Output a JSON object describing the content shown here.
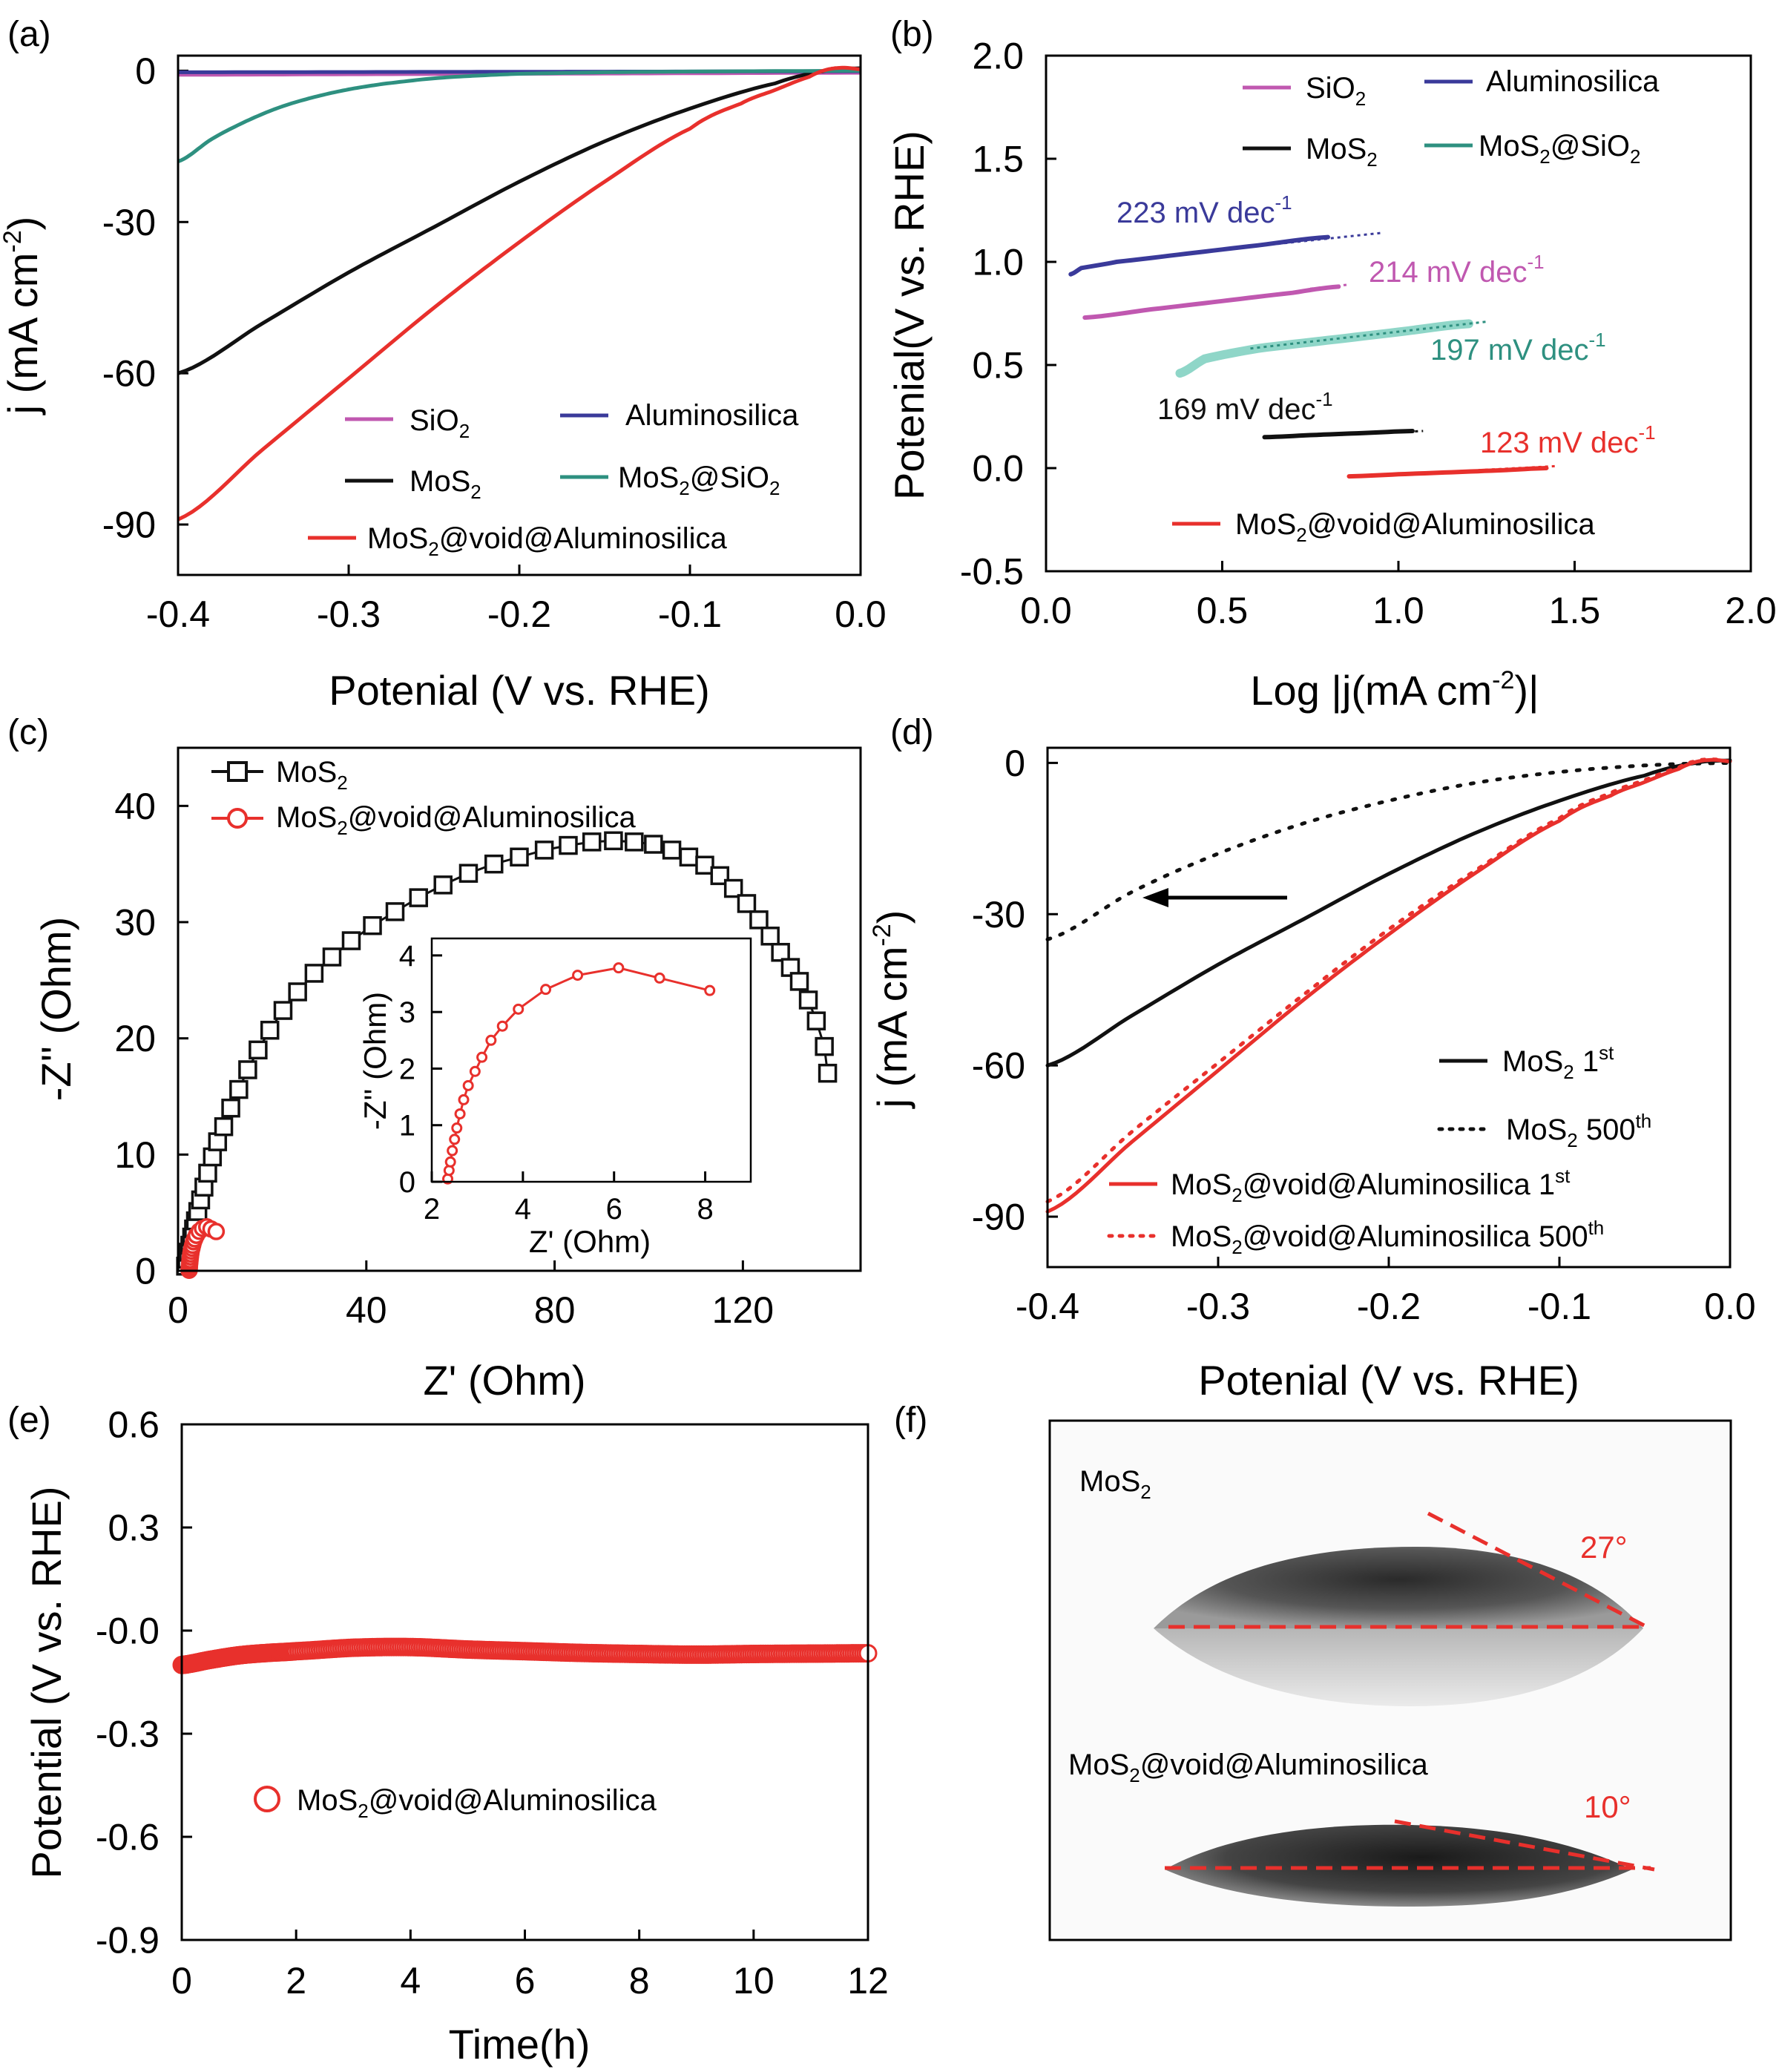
{
  "figure": {
    "panel_labels": [
      "(a)",
      "(b)",
      "(c)",
      "(d)",
      "(e)",
      "(f)"
    ]
  },
  "colors": {
    "sio2": "#c058b0",
    "aluminosilica": "#3a3a9a",
    "mos2": "#111111",
    "mos2_sio2": "#2e9080",
    "mos2_sio2_light": "#8fd6c8",
    "void": "#e8302c"
  },
  "chart_data": [
    {
      "panel": "(a)",
      "type": "line",
      "xlabel": "Potenial (V vs. RHE)",
      "ylabel": "j (mA cm-2)",
      "xlim": [
        -0.4,
        0.0
      ],
      "ylim": [
        -100,
        3
      ],
      "xticks": [
        "-0.4",
        "-0.3",
        "-0.2",
        "-0.1",
        "0.0"
      ],
      "yticks": [
        "0",
        "-30",
        "-60",
        "-90"
      ],
      "legend": [
        "SiO2",
        "Aluminosilica",
        "MoS2",
        "MoS2@SiO2",
        "MoS2@void@Aluminosilica"
      ],
      "series": [
        {
          "name": "SiO2",
          "x": [
            -0.4,
            -0.3,
            -0.2,
            -0.1,
            0.0
          ],
          "y": [
            -0.8,
            -0.7,
            -0.6,
            -0.5,
            -0.4
          ]
        },
        {
          "name": "Aluminosilica",
          "x": [
            -0.4,
            -0.3,
            -0.2,
            -0.1,
            0.0
          ],
          "y": [
            -0.3,
            -0.25,
            -0.2,
            -0.15,
            -0.1
          ]
        },
        {
          "name": "MoS2",
          "x": [
            -0.4,
            -0.35,
            -0.3,
            -0.25,
            -0.2,
            -0.15,
            -0.1,
            -0.05,
            -0.02,
            0.0
          ],
          "y": [
            -60,
            -50,
            -40,
            -31,
            -22,
            -14,
            -7.5,
            -2.5,
            0,
            0.5
          ]
        },
        {
          "name": "MoS2@SiO2",
          "x": [
            -0.4,
            -0.38,
            -0.36,
            -0.34,
            -0.32,
            -0.3,
            -0.28,
            -0.25,
            -0.22,
            -0.2,
            -0.15,
            -0.1,
            0.0
          ],
          "y": [
            -18,
            -13.5,
            -10,
            -7.2,
            -5.2,
            -3.7,
            -2.6,
            -1.5,
            -0.9,
            -0.6,
            -0.3,
            -0.15,
            0
          ]
        },
        {
          "name": "MoS2@void@Aluminosilica",
          "x": [
            -0.4,
            -0.35,
            -0.3,
            -0.25,
            -0.2,
            -0.15,
            -0.1,
            -0.07,
            -0.05,
            -0.03,
            -0.02,
            -0.01,
            0.0
          ],
          "y": [
            -89,
            -75,
            -61,
            -47,
            -34,
            -22,
            -11.5,
            -6.5,
            -3.8,
            -1.2,
            0.2,
            0.6,
            0.3
          ]
        }
      ]
    },
    {
      "panel": "(b)",
      "type": "line",
      "xlabel": "Log |j(mA cm-2)|",
      "ylabel": "Potenial(V vs. RHE)",
      "xlim": [
        0.0,
        2.0
      ],
      "ylim": [
        -0.5,
        2.0
      ],
      "xticks": [
        "0.0",
        "0.5",
        "1.0",
        "1.5",
        "2.0"
      ],
      "yticks": [
        "2.0",
        "1.5",
        "1.0",
        "0.5",
        "0.0",
        "-0.5"
      ],
      "legend": [
        "SiO2",
        "Aluminosilica",
        "MoS2",
        "MoS2@SiO2",
        "MoS2@void@Aluminosilica"
      ],
      "annotations": [
        "223 mV dec-1",
        "214 mV dec-1",
        "197 mV dec-1",
        "169 mV dec-1",
        "123 mV dec-1"
      ],
      "series": [
        {
          "name": "Aluminosilica",
          "x": [
            0.07,
            0.1,
            0.2,
            0.4,
            0.6,
            0.8
          ],
          "y": [
            0.94,
            0.97,
            1.0,
            1.04,
            1.08,
            1.12
          ],
          "fit_x": [
            0.45,
            0.95
          ],
          "fit_y": [
            1.05,
            1.14
          ]
        },
        {
          "name": "SiO2",
          "x": [
            0.11,
            0.3,
            0.5,
            0.7,
            0.83
          ],
          "y": [
            0.73,
            0.77,
            0.81,
            0.85,
            0.88
          ],
          "fit_x": [
            0.75,
            0.86
          ],
          "fit_y": [
            0.87,
            0.89
          ]
        },
        {
          "name": "MoS2@SiO2",
          "x": [
            0.38,
            0.45,
            0.6,
            0.8,
            1.0,
            1.2
          ],
          "y": [
            0.46,
            0.53,
            0.58,
            0.62,
            0.66,
            0.7
          ],
          "fit_x": [
            0.58,
            1.25
          ],
          "fit_y": [
            0.58,
            0.71
          ]
        },
        {
          "name": "MoS2",
          "x": [
            0.62,
            0.75,
            0.9,
            1.04
          ],
          "y": [
            0.15,
            0.16,
            0.17,
            0.18
          ],
          "fit_x": [
            0.82,
            1.07
          ],
          "fit_y": [
            0.16,
            0.18
          ]
        },
        {
          "name": "MoS2@void@Aluminosilica",
          "x": [
            0.86,
            1.0,
            1.15,
            1.3,
            1.42
          ],
          "y": [
            -0.04,
            -0.03,
            -0.02,
            -0.01,
            0.0
          ],
          "fit_x": [
            1.0,
            1.45
          ],
          "fit_y": [
            -0.03,
            0.01
          ]
        }
      ]
    },
    {
      "panel": "(c)",
      "type": "scatter",
      "xlabel": "Z' (Ohm)",
      "ylabel": "-Z'' (Ohm)",
      "xlim": [
        0,
        145
      ],
      "ylim": [
        0,
        45
      ],
      "xticks": [
        "0",
        "40",
        "80",
        "120"
      ],
      "yticks": [
        "0",
        "10",
        "20",
        "30",
        "40"
      ],
      "legend": [
        "MoS2",
        "MoS2@void@Aluminosilica"
      ],
      "series": [
        {
          "name": "MoS2",
          "x": [
            1.6,
            1.9,
            2.2,
            2.5,
            2.9,
            3.3,
            3.7,
            4.2,
            4.8,
            5.5,
            6.3,
            7.3,
            8.4,
            9.7,
            11.2,
            12.9,
            14.8,
            17.0,
            19.5,
            22.3,
            25.4,
            28.9,
            32.7,
            36.8,
            41.3,
            46.1,
            51.1,
            56.3,
            61.7,
            67.1,
            72.5,
            77.8,
            82.9,
            87.9,
            92.5,
            96.9,
            101.0,
            104.9,
            108.5,
            111.9,
            115.1,
            118.0,
            120.8,
            123.4,
            125.8,
            128.0,
            130.1,
            132.0,
            133.9,
            135.6,
            137.3,
            138.0
          ],
          "y": [
            0.4,
            1.0,
            1.6,
            2.2,
            2.9,
            3.6,
            4.3,
            5.1,
            6.1,
            7.2,
            8.4,
            9.8,
            11.1,
            12.4,
            14.0,
            15.6,
            17.3,
            19.0,
            20.7,
            22.4,
            24.0,
            25.6,
            27.0,
            28.4,
            29.7,
            30.9,
            32.1,
            33.2,
            34.2,
            35.0,
            35.6,
            36.2,
            36.6,
            36.9,
            37.0,
            36.9,
            36.7,
            36.2,
            35.6,
            34.9,
            34.0,
            32.9,
            31.6,
            30.2,
            28.8,
            27.4,
            26.1,
            24.9,
            23.3,
            21.5,
            19.3,
            17.0
          ]
        },
        {
          "name": "MoS2@void@Aluminosilica",
          "x": [
            2.35,
            2.38,
            2.41,
            2.45,
            2.5,
            2.55,
            2.62,
            2.7,
            2.8,
            2.95,
            3.1,
            3.3,
            3.55,
            3.9,
            4.5,
            5.2,
            6.1,
            7.0,
            8.1
          ],
          "y": [
            0.05,
            0.2,
            0.35,
            0.55,
            0.75,
            0.95,
            1.2,
            1.45,
            1.7,
            1.95,
            2.2,
            2.5,
            2.75,
            3.05,
            3.4,
            3.65,
            3.78,
            3.6,
            3.38
          ]
        }
      ],
      "inset": {
        "xlabel": "Z' (Ohm)",
        "ylabel": "-Z'' (Ohm)",
        "xlim": [
          2,
          9
        ],
        "ylim": [
          0,
          4.3
        ],
        "xticks": [
          "2",
          "4",
          "6",
          "8"
        ],
        "yticks": [
          "0",
          "1",
          "2",
          "3",
          "4"
        ]
      }
    },
    {
      "panel": "(d)",
      "type": "line",
      "xlabel": "Potenial (V vs. RHE)",
      "ylabel": "j (mA cm-2)",
      "xlim": [
        -0.4,
        0.0
      ],
      "ylim": [
        -100,
        3
      ],
      "xticks": [
        "-0.4",
        "-0.3",
        "-0.2",
        "-0.1",
        "0.0"
      ],
      "yticks": [
        "0",
        "-30",
        "-60",
        "-90"
      ],
      "legend": [
        "MoS2 1st",
        "MoS2 500th",
        "MoS2@void@Aluminosilica 1st",
        "MoS2@void@Aluminosilica 500th"
      ],
      "series": [
        {
          "name": "MoS2 1st",
          "x": [
            -0.4,
            -0.35,
            -0.3,
            -0.25,
            -0.2,
            -0.15,
            -0.1,
            -0.05,
            -0.02,
            0.0
          ],
          "y": [
            -60,
            -50,
            -40,
            -31,
            -22,
            -14,
            -7.5,
            -2.5,
            0,
            0.5
          ]
        },
        {
          "name": "MoS2 500th",
          "x": [
            -0.4,
            -0.35,
            -0.3,
            -0.25,
            -0.2,
            -0.15,
            -0.1,
            -0.05,
            0.0
          ],
          "y": [
            -35,
            -25.5,
            -18,
            -12,
            -7.5,
            -4,
            -1.8,
            -0.5,
            0
          ]
        },
        {
          "name": "MoS2@void@Aluminosilica 1st",
          "x": [
            -0.4,
            -0.35,
            -0.3,
            -0.25,
            -0.2,
            -0.15,
            -0.1,
            -0.07,
            -0.05,
            -0.03,
            -0.02,
            -0.01,
            0.0
          ],
          "y": [
            -89,
            -75,
            -61,
            -47,
            -34,
            -22,
            -11.5,
            -6.5,
            -3.8,
            -1.2,
            0.2,
            0.6,
            0.3
          ]
        },
        {
          "name": "MoS2@void@Aluminosilica 500th",
          "x": [
            -0.4,
            -0.35,
            -0.3,
            -0.25,
            -0.2,
            -0.15,
            -0.1,
            -0.07,
            -0.05,
            -0.03,
            -0.02,
            -0.01,
            0.0
          ],
          "y": [
            -87,
            -73,
            -59.5,
            -46,
            -33,
            -21.5,
            -11,
            -6,
            -3.4,
            -0.9,
            0.4,
            0.7,
            0.3
          ]
        }
      ]
    },
    {
      "panel": "(e)",
      "type": "scatter",
      "xlabel": "Time(h)",
      "ylabel": "Potential (V vs. RHE)",
      "xlim": [
        0,
        12
      ],
      "ylim": [
        -0.9,
        0.6
      ],
      "xticks": [
        "0",
        "2",
        "4",
        "6",
        "8",
        "10",
        "12"
      ],
      "yticks": [
        "0.6",
        "0.3",
        "-0.0",
        "-0.3",
        "-0.6",
        "-0.9"
      ],
      "legend": [
        "MoS2@void@Aluminosilica"
      ],
      "series": [
        {
          "name": "MoS2@void@Aluminosilica",
          "x": [
            0,
            0.5,
            1,
            1.5,
            2,
            3,
            4,
            5,
            6,
            7,
            8,
            9,
            10,
            11,
            12
          ],
          "y": [
            -0.1,
            -0.085,
            -0.072,
            -0.065,
            -0.06,
            -0.05,
            -0.048,
            -0.055,
            -0.06,
            -0.065,
            -0.068,
            -0.07,
            -0.068,
            -0.067,
            -0.066
          ]
        }
      ]
    }
  ],
  "panel_f": {
    "labels": [
      "MoS2",
      "MoS2@void@Aluminosilica"
    ],
    "angles": [
      "27°",
      "10°"
    ]
  }
}
